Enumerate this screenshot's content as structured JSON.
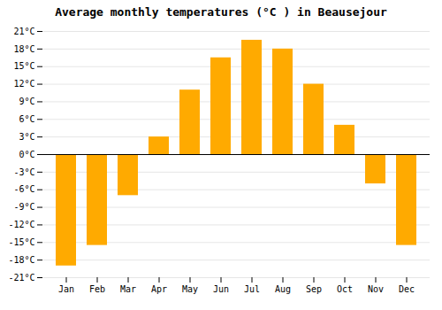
{
  "chart_data": {
    "type": "bar",
    "title": "Average monthly temperatures (°C ) in Beausejour",
    "categories": [
      "Jan",
      "Feb",
      "Mar",
      "Apr",
      "May",
      "Jun",
      "Jul",
      "Aug",
      "Sep",
      "Oct",
      "Nov",
      "Dec"
    ],
    "values": [
      -19,
      -15.5,
      -7,
      3,
      11,
      16.5,
      19.5,
      18,
      12,
      5,
      -5,
      -15.5
    ],
    "color": "#FFAA00",
    "ylim": [
      -21,
      21
    ],
    "yticks": [
      {
        "value": -21,
        "label": "-21°C"
      },
      {
        "value": -18,
        "label": "-18°C"
      },
      {
        "value": -15,
        "label": "-15°C"
      },
      {
        "value": -12,
        "label": "-12°C"
      },
      {
        "value": -9,
        "label": "-9°C"
      },
      {
        "value": -6,
        "label": "-6°C"
      },
      {
        "value": -3,
        "label": "-3°C"
      },
      {
        "value": 0,
        "label": "0°C"
      },
      {
        "value": 3,
        "label": "3°C"
      },
      {
        "value": 6,
        "label": "6°C"
      },
      {
        "value": 9,
        "label": "9°C"
      },
      {
        "value": 12,
        "label": "12°C"
      },
      {
        "value": 15,
        "label": "15°C"
      },
      {
        "value": 18,
        "label": "18°C"
      },
      {
        "value": 21,
        "label": "21°C"
      }
    ],
    "grid": true
  }
}
